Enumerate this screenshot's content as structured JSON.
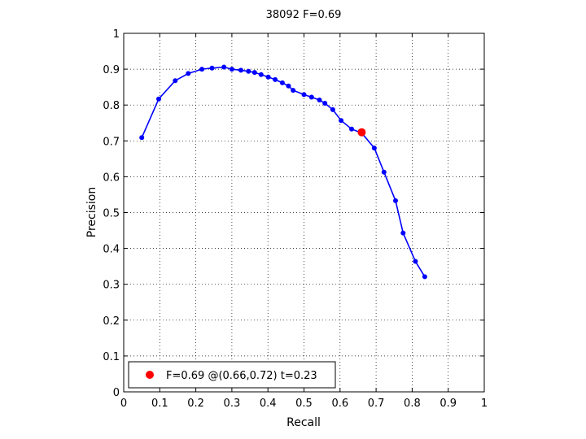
{
  "chart_data": {
    "type": "line",
    "title": "38092 F=0.69",
    "xlabel": "Recall",
    "ylabel": "Precision",
    "xlim": [
      0,
      1
    ],
    "ylim": [
      0,
      1
    ],
    "xticks": [
      "0",
      "0.1",
      "0.2",
      "0.3",
      "0.4",
      "0.5",
      "0.6",
      "0.7",
      "0.8",
      "0.9",
      "1"
    ],
    "yticks": [
      "0",
      "0.1",
      "0.2",
      "0.3",
      "0.4",
      "0.5",
      "0.6",
      "0.7",
      "0.8",
      "0.9",
      "1"
    ],
    "grid": true,
    "legend_position": "bottom-left",
    "series": [
      {
        "color": "#0000ff",
        "x": [
          0.05,
          0.097,
          0.143,
          0.179,
          0.217,
          0.245,
          0.278,
          0.3,
          0.325,
          0.346,
          0.363,
          0.381,
          0.401,
          0.42,
          0.44,
          0.457,
          0.47,
          0.5,
          0.521,
          0.543,
          0.558,
          0.58,
          0.603,
          0.632,
          0.66,
          0.695,
          0.722,
          0.754,
          0.775,
          0.809,
          0.835
        ],
        "y": [
          0.709,
          0.817,
          0.868,
          0.888,
          0.9,
          0.903,
          0.906,
          0.9,
          0.897,
          0.894,
          0.891,
          0.885,
          0.878,
          0.871,
          0.862,
          0.853,
          0.841,
          0.829,
          0.822,
          0.814,
          0.805,
          0.787,
          0.757,
          0.733,
          0.722,
          0.68,
          0.613,
          0.533,
          0.443,
          0.364,
          0.321
        ]
      }
    ],
    "highlight": {
      "color": "#ff0000",
      "x": 0.66,
      "y": 0.724,
      "legend_label": "F=0.69 @(0.66,0.72) t=0.23"
    }
  }
}
